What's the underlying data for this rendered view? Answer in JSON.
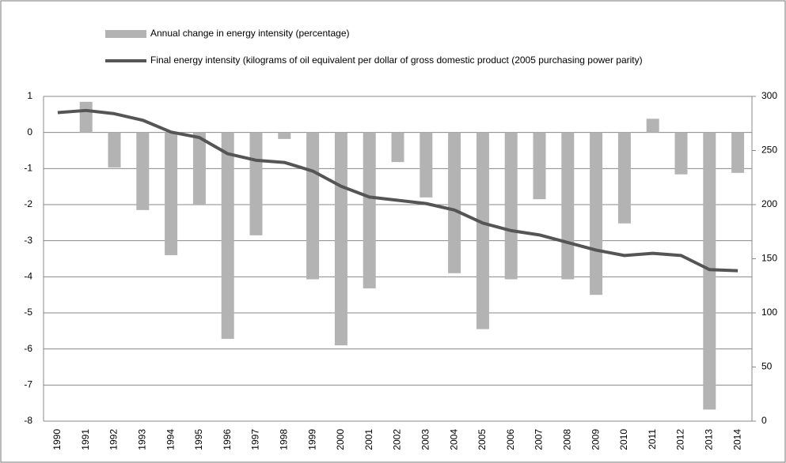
{
  "chart_data": {
    "type": "bar",
    "categories": [
      "1990",
      "1991",
      "1992",
      "1993",
      "1994",
      "1995",
      "1996",
      "1997",
      "1998",
      "1999",
      "2000",
      "2001",
      "2002",
      "2003",
      "2004",
      "2005",
      "2006",
      "2007",
      "2008",
      "2009",
      "2010",
      "2011",
      "2012",
      "2013",
      "2014"
    ],
    "series": [
      {
        "name": "Annual change in energy intensity (percentage)",
        "type": "bar",
        "color": "#b3b3b3",
        "values": [
          null,
          0.85,
          -0.97,
          -2.15,
          -3.4,
          -2.0,
          -5.72,
          -2.85,
          -0.18,
          -4.07,
          -5.9,
          -4.32,
          -0.82,
          -1.8,
          -3.9,
          -5.45,
          -4.07,
          -1.85,
          -4.07,
          -4.5,
          -2.52,
          0.38,
          -1.16,
          -7.68,
          -1.12
        ]
      },
      {
        "name": "Final energy intensity (kilograms of oil equivalent per dollar of gross domestic product (2005 purchasing power parity)",
        "type": "line",
        "color": "#555555",
        "axis": "y2",
        "values": [
          285,
          287,
          284,
          278,
          267,
          262,
          247,
          241,
          239,
          231,
          217,
          207,
          204,
          201,
          195,
          183,
          176,
          172,
          165,
          158,
          153,
          155,
          153,
          140,
          139
        ]
      }
    ],
    "ylim": [
      -8,
      1
    ],
    "yticks": [
      -8,
      -7,
      -6,
      -5,
      -4,
      -3,
      -2,
      -1,
      0,
      1
    ],
    "y2lim": [
      0,
      300
    ],
    "y2ticks": [
      0,
      50,
      100,
      150,
      200,
      250,
      300
    ],
    "grid": true,
    "legend": "top"
  }
}
